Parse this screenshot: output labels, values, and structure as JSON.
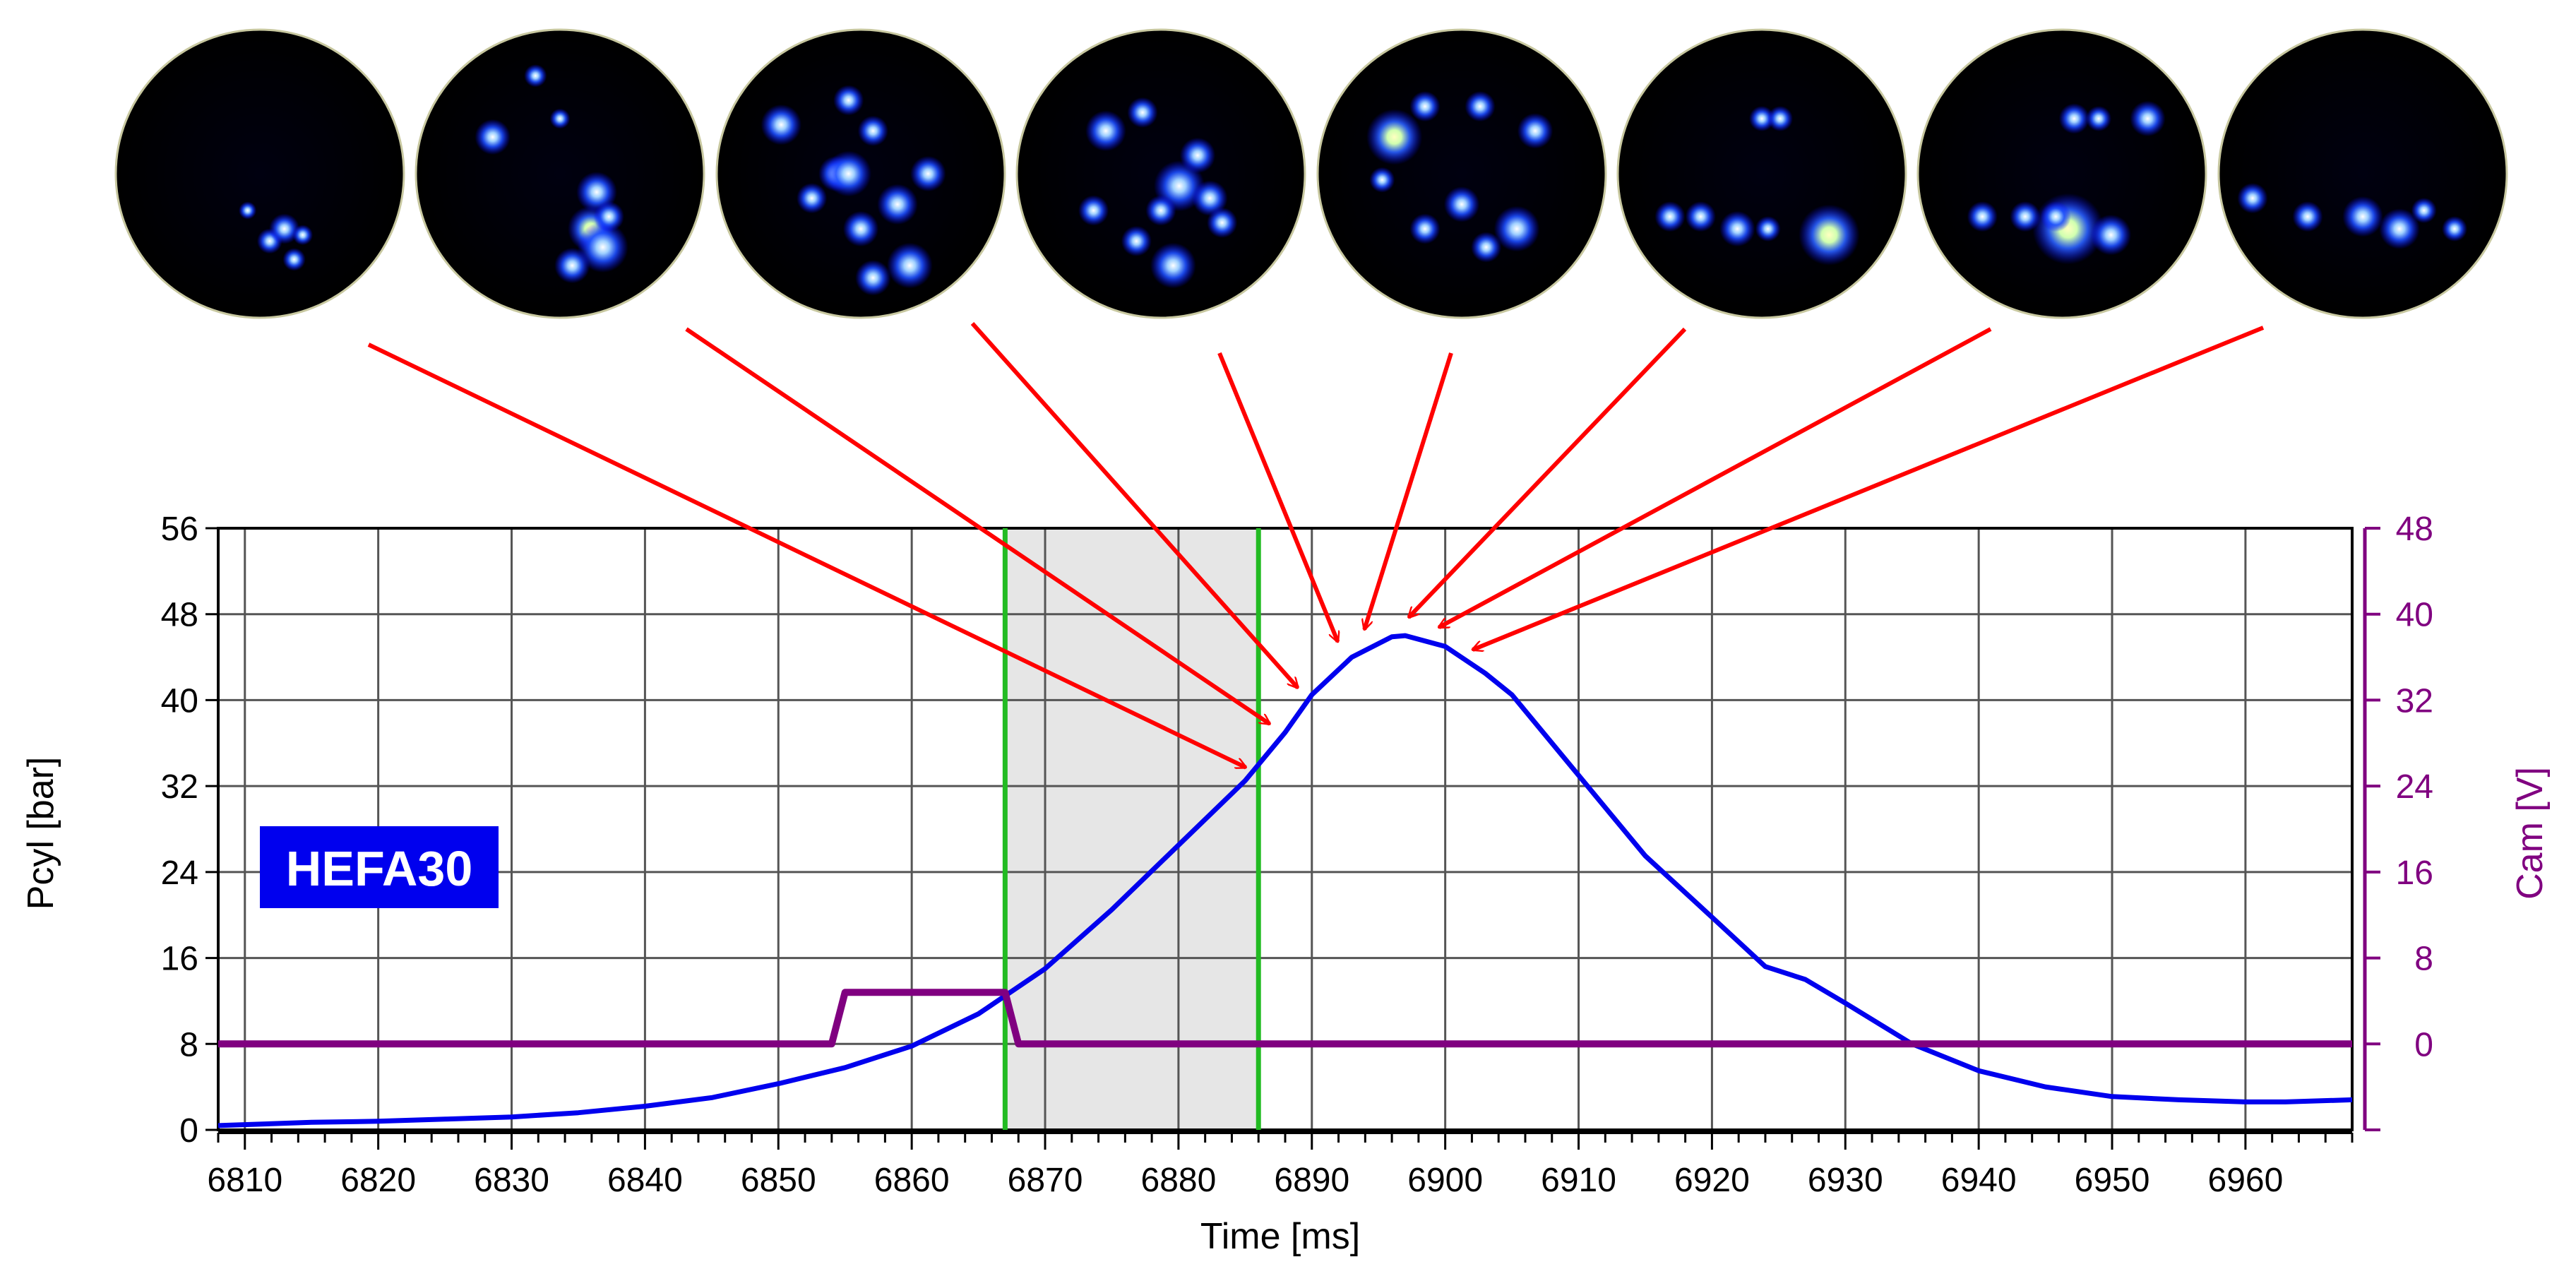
{
  "chart_data": {
    "type": "line",
    "xlabel": "Time [ms]",
    "ylabel": "Pcyl [bar]",
    "y2label": "Cam [V]",
    "xlim": [
      6808,
      6968
    ],
    "ylim": [
      0,
      56
    ],
    "y2lim": [
      -8,
      48
    ],
    "xticks": [
      6810,
      6820,
      6830,
      6840,
      6850,
      6860,
      6870,
      6880,
      6890,
      6900,
      6910,
      6920,
      6930,
      6940,
      6950,
      6960
    ],
    "yticks": [
      0,
      8,
      16,
      24,
      32,
      40,
      48,
      56
    ],
    "y2ticks": [
      0,
      8,
      16,
      24,
      32,
      40,
      48
    ],
    "grid": true,
    "badge": "HEFA30",
    "shaded_region": [
      6867,
      6886
    ],
    "vertical_markers": [
      6867,
      6886
    ],
    "series": [
      {
        "name": "Pcyl",
        "axis": "left",
        "color": "#0000ee",
        "x": [
          6808,
          6815,
          6820,
          6825,
          6830,
          6835,
          6840,
          6845,
          6850,
          6855,
          6860,
          6865,
          6870,
          6875,
          6880,
          6885,
          6888,
          6890,
          6893,
          6896,
          6897,
          6900,
          6903,
          6905,
          6910,
          6915,
          6920,
          6924,
          6927,
          6930,
          6935,
          6940,
          6945,
          6950,
          6955,
          6960,
          6963,
          6968
        ],
        "values": [
          0.4,
          0.7,
          0.8,
          1.0,
          1.2,
          1.6,
          2.2,
          3.0,
          4.3,
          5.8,
          7.8,
          10.8,
          15.0,
          20.5,
          26.5,
          32.5,
          37.0,
          40.5,
          44.0,
          45.9,
          46.0,
          45.0,
          42.5,
          40.5,
          33.0,
          25.5,
          19.8,
          15.2,
          14.0,
          11.8,
          8.0,
          5.5,
          4.0,
          3.1,
          2.8,
          2.6,
          2.6,
          2.8
        ]
      },
      {
        "name": "Cam",
        "axis": "right",
        "color": "#800080",
        "x": [
          6808,
          6854,
          6855,
          6867,
          6868,
          6968
        ],
        "values": [
          0,
          0,
          4.8,
          4.8,
          0,
          0
        ]
      }
    ],
    "annotations": {
      "thumbnail_targets_ms": [
        6886,
        6888,
        6890,
        6893,
        6895,
        6897,
        6899,
        6901
      ],
      "thumbnail_count": 8
    }
  }
}
